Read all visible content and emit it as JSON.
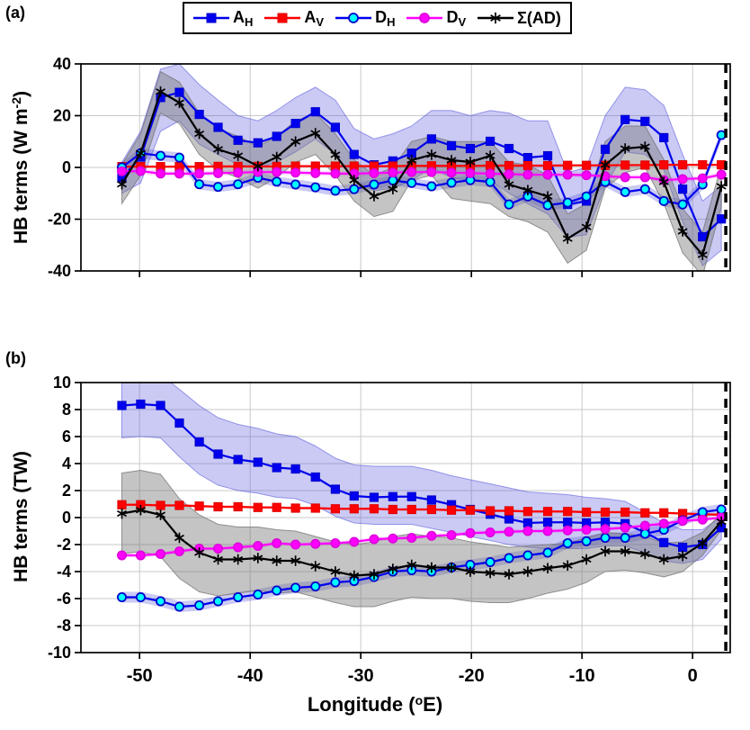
{
  "figure": {
    "background": "#ffffff"
  },
  "panel_tags": {
    "a": "(a)",
    "b": "(b)"
  },
  "legend": {
    "entries": [
      {
        "label": "A",
        "sub": "H",
        "marker": "square",
        "line": "#0000EE",
        "face": "#0000EE",
        "edge": "#0000CC"
      },
      {
        "label": "A",
        "sub": "V",
        "marker": "square",
        "line": "#FF0000",
        "face": "#FF0000",
        "edge": "#DD0000"
      },
      {
        "label": "D",
        "sub": "H",
        "marker": "circle",
        "line": "#0000EE",
        "face": "#00FFFF",
        "edge": "#0000CC"
      },
      {
        "label": "D",
        "sub": "V",
        "marker": "circle",
        "line": "#FF00FF",
        "face": "#FF00FF",
        "edge": "#DD00DD"
      },
      {
        "label": "Σ(AD)",
        "sub": "",
        "marker": "asterisk",
        "line": "#000000",
        "face": "#000000",
        "edge": "#000000"
      }
    ]
  },
  "colors": {
    "grid": "#c9c9c9",
    "axis": "#000000",
    "dashed_line": "#000000",
    "band_blue": "rgba(80,80,220,0.30)",
    "band_blue_edge": "rgba(80,80,220,0.55)",
    "band_gray": "rgba(115,115,115,0.42)",
    "band_gray_edge": "rgba(115,115,115,0.75)",
    "band_pink": "rgba(255,0,255,0.15)",
    "band_red": "rgba(255,60,60,0.18)"
  },
  "chart_data": {
    "type": "line",
    "xlabel": {
      "pre": "Longitude (",
      "sup": "o",
      "post": "E)"
    },
    "xlim": [
      -55.3,
      3.4
    ],
    "xticks": [
      -50,
      -40,
      -30,
      -20,
      -10,
      0
    ],
    "dashed_line_x": 3.0,
    "x": [
      -51.6,
      -49.9,
      -48.1,
      -46.4,
      -44.6,
      -42.9,
      -41.1,
      -39.3,
      -37.6,
      -35.9,
      -34.1,
      -32.3,
      -30.6,
      -28.8,
      -27.1,
      -25.4,
      -23.6,
      -21.8,
      -20.1,
      -18.3,
      -16.6,
      -14.9,
      -13.1,
      -11.3,
      -9.6,
      -7.9,
      -6.1,
      -4.3,
      -2.6,
      -0.9,
      0.9,
      2.6
    ],
    "panels": [
      {
        "tag": "(a)",
        "ylabel": {
          "pre": "HB terms (W m",
          "sup": "-2",
          "post": ")"
        },
        "ylim": [
          -40,
          40
        ],
        "yticks": [
          40,
          20,
          0,
          -20,
          -40
        ],
        "series": [
          {
            "id": "AH",
            "name": "A_H",
            "line": "#0000EE",
            "marker": "square",
            "face": "#0000EE",
            "edge": "#0000CC",
            "values": [
              -4,
              4,
              27,
              29,
              20.5,
              15.5,
              10.5,
              9.5,
              12,
              17,
              21.5,
              15.5,
              5,
              1,
              2.5,
              5.5,
              11,
              8.4,
              7.3,
              10.1,
              7.3,
              3.8,
              4.5,
              -14.3,
              -13,
              7,
              18.5,
              17.8,
              11.5,
              -8.4,
              -26.8,
              -19.9
            ],
            "band_upper": [
              2,
              14,
              38,
              40,
              32,
              26,
              20,
              18,
              22,
              27,
              31,
              26,
              15,
              11,
              13,
              16,
              22,
              22,
              20,
              22,
              21,
              18,
              18,
              -2,
              0,
              20,
              31,
              30,
              24,
              5,
              -13,
              -7
            ],
            "band_lower": [
              -10,
              -6,
              14,
              18,
              9,
              5,
              1,
              0,
              2,
              6,
              11,
              5,
              -5,
              -9,
              -8,
              -5,
              0,
              -4,
              -5,
              -5,
              -10,
              -14,
              -18,
              -27,
              -26,
              -7,
              6,
              5,
              -1,
              -21,
              -38,
              -32
            ],
            "band_fill": "band_blue",
            "band_edge": "band_blue_edge"
          },
          {
            "id": "AV",
            "name": "A_V",
            "line": "#FF0000",
            "marker": "square",
            "face": "#FF0000",
            "edge": "#DD0000",
            "values": [
              0.3,
              0.3,
              0.3,
              0.3,
              0.3,
              0.4,
              0.4,
              0.4,
              0.4,
              0.5,
              0.5,
              0.5,
              0.5,
              0.5,
              0.5,
              0.6,
              0.6,
              0.6,
              0.6,
              0.7,
              0.7,
              0.7,
              0.7,
              0.8,
              0.8,
              0.8,
              0.9,
              0.9,
              1,
              1,
              1,
              1
            ],
            "band_hw": 0.5,
            "band_fill": "band_red"
          },
          {
            "id": "DH",
            "name": "D_H",
            "line": "#0000EE",
            "marker": "circle",
            "face": "#00FFFF",
            "edge": "#0000CC",
            "values": [
              0,
              5.5,
              4.5,
              3.8,
              -6.5,
              -7.5,
              -6.5,
              -4,
              -5.5,
              -6.6,
              -7.7,
              -9,
              -8.4,
              -6.6,
              -5,
              -6,
              -7.3,
              -5.9,
              -4.9,
              -5.6,
              -14.3,
              -11.2,
              -14.6,
              -13.6,
              -11.2,
              -5.6,
              -9.5,
              -8.4,
              -13,
              -14.3,
              -6.6,
              12.5
            ],
            "band_hw": 2,
            "band_fill": "band_blue"
          },
          {
            "id": "DV",
            "name": "D_V",
            "line": "#FF00FF",
            "marker": "circle",
            "face": "#FF00FF",
            "edge": "#DD00DD",
            "values": [
              -1.5,
              -1.4,
              -2.4,
              -2.4,
              -2.4,
              -2.2,
              -2,
              -1.8,
              -1.8,
              -2,
              -2.2,
              -2.4,
              -2.4,
              -2.2,
              -2,
              -1.8,
              -1.8,
              -2,
              -2.2,
              -2.4,
              -2.6,
              -2.8,
              -2.8,
              -2.8,
              -3,
              -3.4,
              -3.8,
              -3.8,
              -4.9,
              -4.5,
              -4.2,
              -2.8
            ],
            "band_hw": 1,
            "band_fill": "band_pink"
          },
          {
            "id": "S",
            "name": "Σ(AD)",
            "line": "#000000",
            "marker": "asterisk",
            "face": "#000000",
            "edge": "#000000",
            "values": [
              -6.5,
              5.5,
              29.3,
              25,
              13,
              7,
              4.5,
              0.5,
              4,
              10,
              13.2,
              4.9,
              -4.9,
              -11.1,
              -8.4,
              2.8,
              4.9,
              2.8,
              2.1,
              4.5,
              -6.6,
              -8.8,
              -11.2,
              -27.5,
              -23,
              1,
              7.3,
              8,
              -5.6,
              -24.7,
              -33.8,
              -7.3
            ],
            "band_upper": [
              1,
              13,
              37,
              33,
              21,
              15,
              12,
              8,
              12,
              18,
              21,
              13,
              3,
              -3,
              0,
              10,
              12,
              10,
              10,
              10,
              2,
              1,
              -3,
              -18,
              -14,
              10,
              16,
              16,
              3,
              -16,
              -25,
              1
            ],
            "band_lower": [
              -14,
              -3,
              21,
              17,
              5,
              -1,
              -4,
              -8,
              -4,
              2,
              5,
              -3,
              -13,
              -19,
              -17,
              -5,
              -3,
              -12,
              -13,
              -14,
              -19,
              -21,
              -25,
              -37,
              -32,
              -8,
              -2,
              0,
              -14,
              -33,
              -42,
              -15
            ],
            "band_fill": "band_gray",
            "band_edge": "band_gray_edge"
          }
        ]
      },
      {
        "tag": "(b)",
        "ylabel": {
          "pre": "HB terms (TW)",
          "sup": "",
          "post": ""
        },
        "ylim": [
          -10,
          10
        ],
        "yticks": [
          10,
          8,
          6,
          4,
          2,
          0,
          -2,
          -4,
          -6,
          -8,
          -10
        ],
        "series": [
          {
            "id": "AH",
            "name": "A_H",
            "line": "#0000EE",
            "marker": "square",
            "face": "#0000EE",
            "edge": "#0000CC",
            "values": [
              8.3,
              8.4,
              8.3,
              7,
              5.6,
              4.7,
              4.3,
              4.1,
              3.7,
              3.6,
              3,
              2.1,
              1.6,
              1.5,
              1.55,
              1.55,
              1.3,
              0.95,
              0.6,
              0.25,
              -0.1,
              -0.4,
              -0.35,
              -0.35,
              -0.4,
              -0.35,
              -0.45,
              -1.1,
              -1.85,
              -2.2,
              -2,
              -0.75
            ],
            "band_upper": [
              10.6,
              10.7,
              10.6,
              9.5,
              8.3,
              7.4,
              6.9,
              6.6,
              6.2,
              6,
              5.3,
              4.4,
              3.9,
              3.8,
              3.8,
              3.8,
              3.5,
              3.1,
              2.8,
              2.5,
              2.2,
              1.9,
              1.8,
              1.7,
              1.5,
              1.4,
              1.2,
              0.4,
              -0.4,
              -0.9,
              -0.9,
              0.1
            ],
            "band_lower": [
              5.9,
              6,
              5.9,
              4.5,
              3.2,
              2.4,
              2,
              1.8,
              1.5,
              1.4,
              0.9,
              0.1,
              -0.4,
              -0.5,
              -0.5,
              -0.5,
              -0.8,
              -1.1,
              -1.4,
              -1.7,
              -2,
              -2.2,
              -2.3,
              -2.3,
              -2.3,
              -2.1,
              -2.1,
              -2.6,
              -3.2,
              -3.4,
              -3.1,
              -1.6
            ],
            "band_fill": "band_blue",
            "band_edge": "band_blue_edge"
          },
          {
            "id": "AV",
            "name": "A_V",
            "line": "#FF0000",
            "marker": "square",
            "face": "#FF0000",
            "edge": "#DD0000",
            "values": [
              0.95,
              0.95,
              0.9,
              0.9,
              0.85,
              0.8,
              0.8,
              0.75,
              0.75,
              0.7,
              0.7,
              0.65,
              0.65,
              0.65,
              0.6,
              0.6,
              0.6,
              0.55,
              0.55,
              0.5,
              0.5,
              0.45,
              0.45,
              0.45,
              0.4,
              0.4,
              0.4,
              0.35,
              0.35,
              0.3,
              0.25,
              0.2
            ],
            "band_hw": 0.1,
            "band_fill": "band_red"
          },
          {
            "id": "DH",
            "name": "D_H",
            "line": "#0000EE",
            "marker": "circle",
            "face": "#00FFFF",
            "edge": "#0000CC",
            "values": [
              -5.9,
              -5.9,
              -6.2,
              -6.6,
              -6.5,
              -6.2,
              -5.9,
              -5.7,
              -5.4,
              -5.2,
              -5.1,
              -4.8,
              -4.7,
              -4.4,
              -4,
              -3.9,
              -4,
              -3.7,
              -3.5,
              -3.3,
              -3,
              -2.8,
              -2.6,
              -1.9,
              -1.75,
              -1.5,
              -1.5,
              -1.2,
              -0.9,
              -0.2,
              0.4,
              0.6
            ],
            "band_hw": 0.4,
            "band_fill": "band_blue"
          },
          {
            "id": "DV",
            "name": "D_V",
            "line": "#FF00FF",
            "marker": "circle",
            "face": "#FF00FF",
            "edge": "#DD00DD",
            "values": [
              -2.8,
              -2.8,
              -2.7,
              -2.5,
              -2.3,
              -2.3,
              -2.2,
              -2.1,
              -1.9,
              -2,
              -1.95,
              -1.9,
              -1.8,
              -1.6,
              -1.55,
              -1.5,
              -1.35,
              -1.3,
              -1.15,
              -1.1,
              -1.05,
              -1,
              -1,
              -0.95,
              -0.9,
              -0.85,
              -0.75,
              -0.6,
              -0.45,
              -0.25,
              -0.15,
              0
            ],
            "band_hw": 0.15,
            "band_fill": "band_pink"
          },
          {
            "id": "S",
            "name": "Σ(AD)",
            "line": "#000000",
            "marker": "asterisk",
            "face": "#000000",
            "edge": "#000000",
            "values": [
              0.3,
              0.55,
              0.2,
              -1.5,
              -2.6,
              -3.1,
              -3.1,
              -3,
              -3.2,
              -3.2,
              -3.6,
              -4,
              -4.3,
              -4.2,
              -3.8,
              -3.5,
              -3.7,
              -3.7,
              -4,
              -4.1,
              -4.2,
              -4,
              -3.75,
              -3.55,
              -3.1,
              -2.5,
              -2.5,
              -2.7,
              -3.1,
              -2.85,
              -1.9,
              -0.3
            ],
            "band_upper": [
              3.3,
              3.5,
              3.2,
              1.4,
              0.2,
              -0.5,
              -0.7,
              -0.7,
              -0.9,
              -1,
              -1.4,
              -1.8,
              -2,
              -1.8,
              -1.4,
              -1.2,
              -1.4,
              -1.5,
              -1.8,
              -2,
              -2.2,
              -2.1,
              -2,
              -1.9,
              -1.5,
              -1.1,
              -1.2,
              -1.4,
              -1.9,
              -1.8,
              -1.1,
              0.3
            ],
            "band_lower": [
              -2.7,
              -2.5,
              -2.9,
              -4.5,
              -5.5,
              -5.8,
              -5.6,
              -5.4,
              -5.6,
              -5.5,
              -5.9,
              -6.3,
              -6.6,
              -6.6,
              -6.2,
              -5.9,
              -6,
              -6,
              -6.2,
              -6.3,
              -6.3,
              -6,
              -5.6,
              -5.3,
              -4.8,
              -4,
              -3.9,
              -4.1,
              -4.4,
              -4,
              -2.8,
              -0.9
            ],
            "band_fill": "band_gray",
            "band_edge": "band_gray_edge"
          }
        ]
      }
    ]
  }
}
